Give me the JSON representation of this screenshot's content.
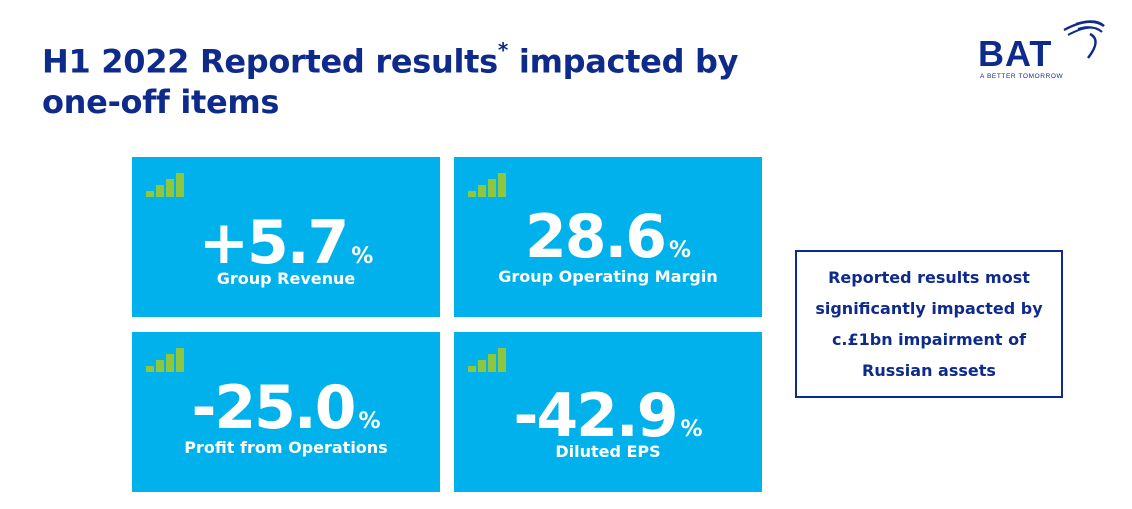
{
  "title": {
    "line1_prefix": "H1 2022 Reported results",
    "footnote_mark": "*",
    "line1_suffix": " impacted by",
    "line2": "one-off items"
  },
  "logo": {
    "name": "BAT",
    "tagline": "A BETTER TOMORROW",
    "brand_color": "#0e2b8c"
  },
  "colors": {
    "tile_background": "#00b1eb",
    "tile_text": "#ffffff",
    "bar_icon": "#8dc63f",
    "navy": "#0e2b8c"
  },
  "tiles": [
    {
      "value": "+5.7",
      "unit": "%",
      "label": "Group Revenue",
      "icon": "signal-bars-icon"
    },
    {
      "value": "28.6",
      "unit": "%",
      "label": "Group Operating Margin",
      "icon": "signal-bars-icon"
    },
    {
      "value": "-25.0",
      "unit": "%",
      "label": "Profit from Operations",
      "icon": "signal-bars-icon"
    },
    {
      "value": "-42.9",
      "unit": "%",
      "label": "Diluted EPS",
      "icon": "signal-bars-icon"
    }
  ],
  "callout": {
    "lines": [
      "Reported results most",
      "significantly impacted by",
      "c.£1bn impairment of",
      "Russian assets"
    ]
  }
}
